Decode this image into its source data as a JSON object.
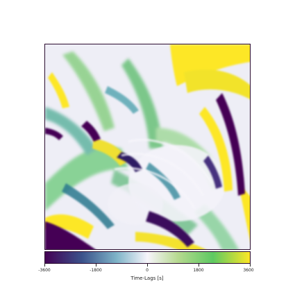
{
  "colorbar": {
    "label": "Time-Lags [s]",
    "ticks": [
      "-3600",
      "-1800",
      "0",
      "1800",
      "3600"
    ],
    "range": [
      -3600,
      3600
    ],
    "colormap": [
      "#440154",
      "#3b528b",
      "#7fb4c8",
      "#f7f5fb",
      "#b6d98f",
      "#5ec962",
      "#fde725"
    ]
  },
  "colors": {
    "frame": "#2a0a2e",
    "background": "#ffffff"
  }
}
